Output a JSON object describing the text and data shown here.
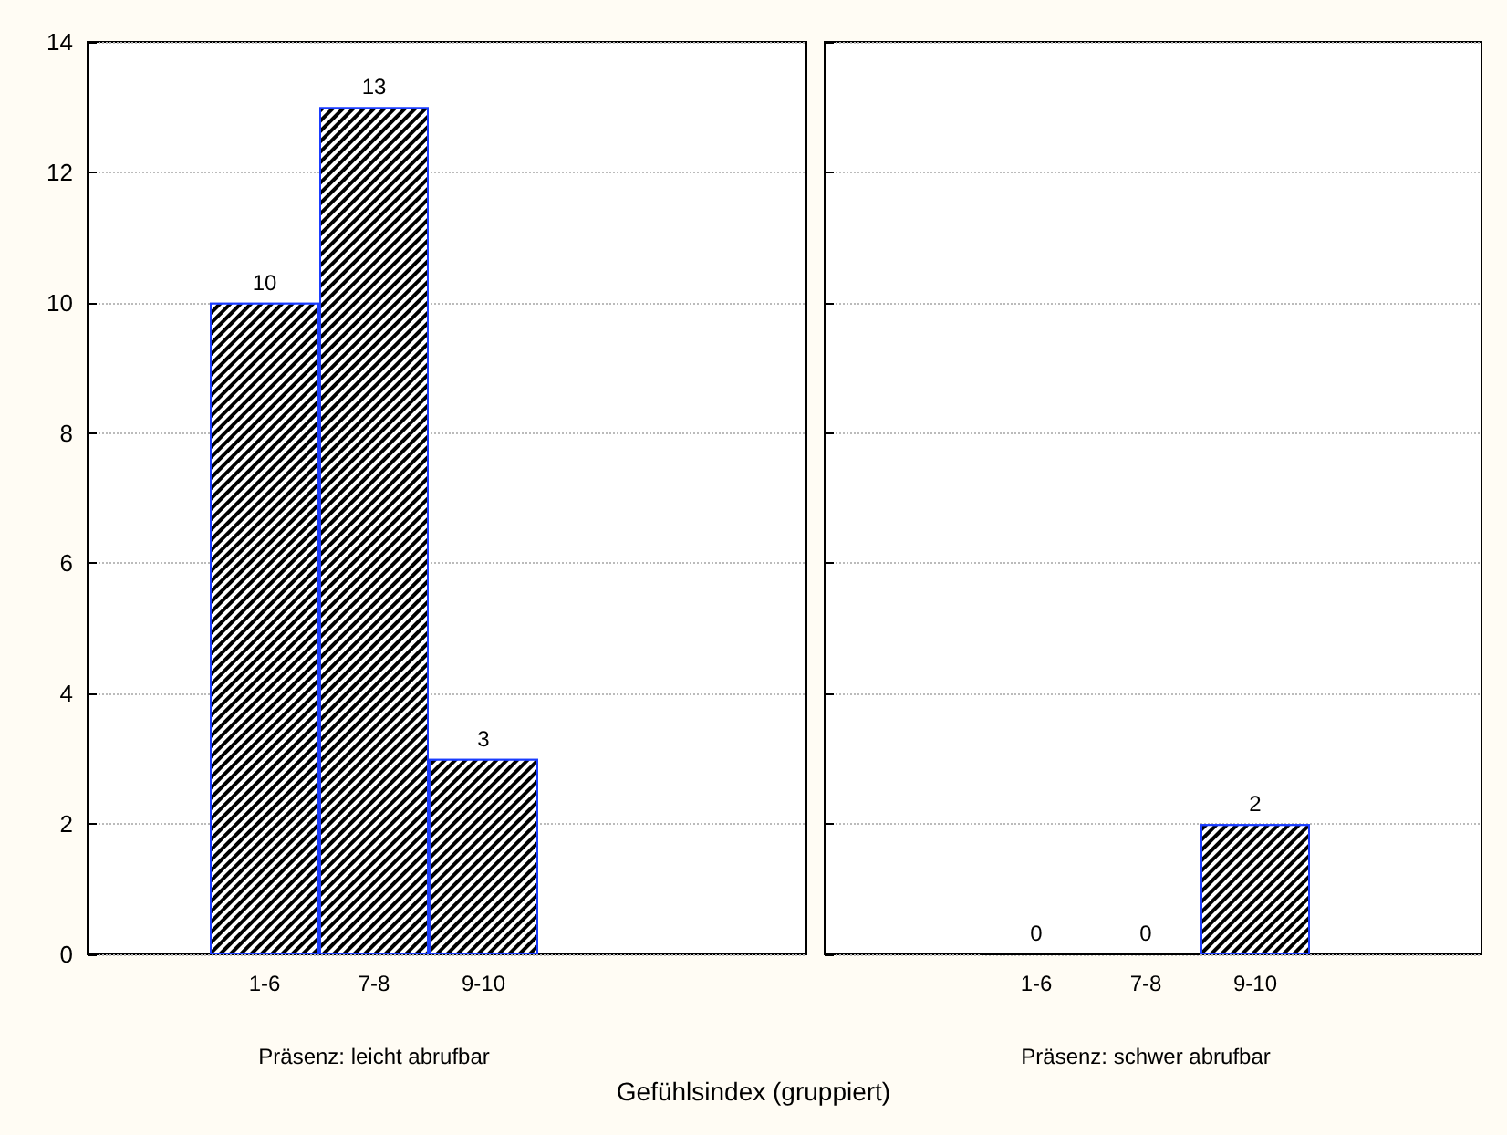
{
  "chart_data": [
    {
      "type": "bar",
      "xlabel": "Präsenz: leicht abrufbar",
      "categories": [
        "1-6",
        "7-8",
        "9-10"
      ],
      "values": [
        10,
        13,
        3
      ],
      "color": "#000000",
      "data_labels": true,
      "ylim": [
        0,
        14
      ],
      "yticks": [
        0,
        2,
        4,
        6,
        8,
        10,
        12,
        14
      ],
      "grid": "y",
      "annotations": [
        "Gefühlsindex (gruppiert)"
      ]
    },
    {
      "type": "bar",
      "xlabel": "Präsenz: schwer abrufbar",
      "categories": [
        "1-6",
        "7-8",
        "9-10"
      ],
      "values": [
        0,
        0,
        2
      ],
      "color": "#000000",
      "data_labels": true,
      "ylim": [
        0,
        14
      ],
      "yticks": [
        0,
        2,
        4,
        6,
        8,
        10,
        12,
        14
      ],
      "grid": "y",
      "tick_labels": "x"
    }
  ]
}
